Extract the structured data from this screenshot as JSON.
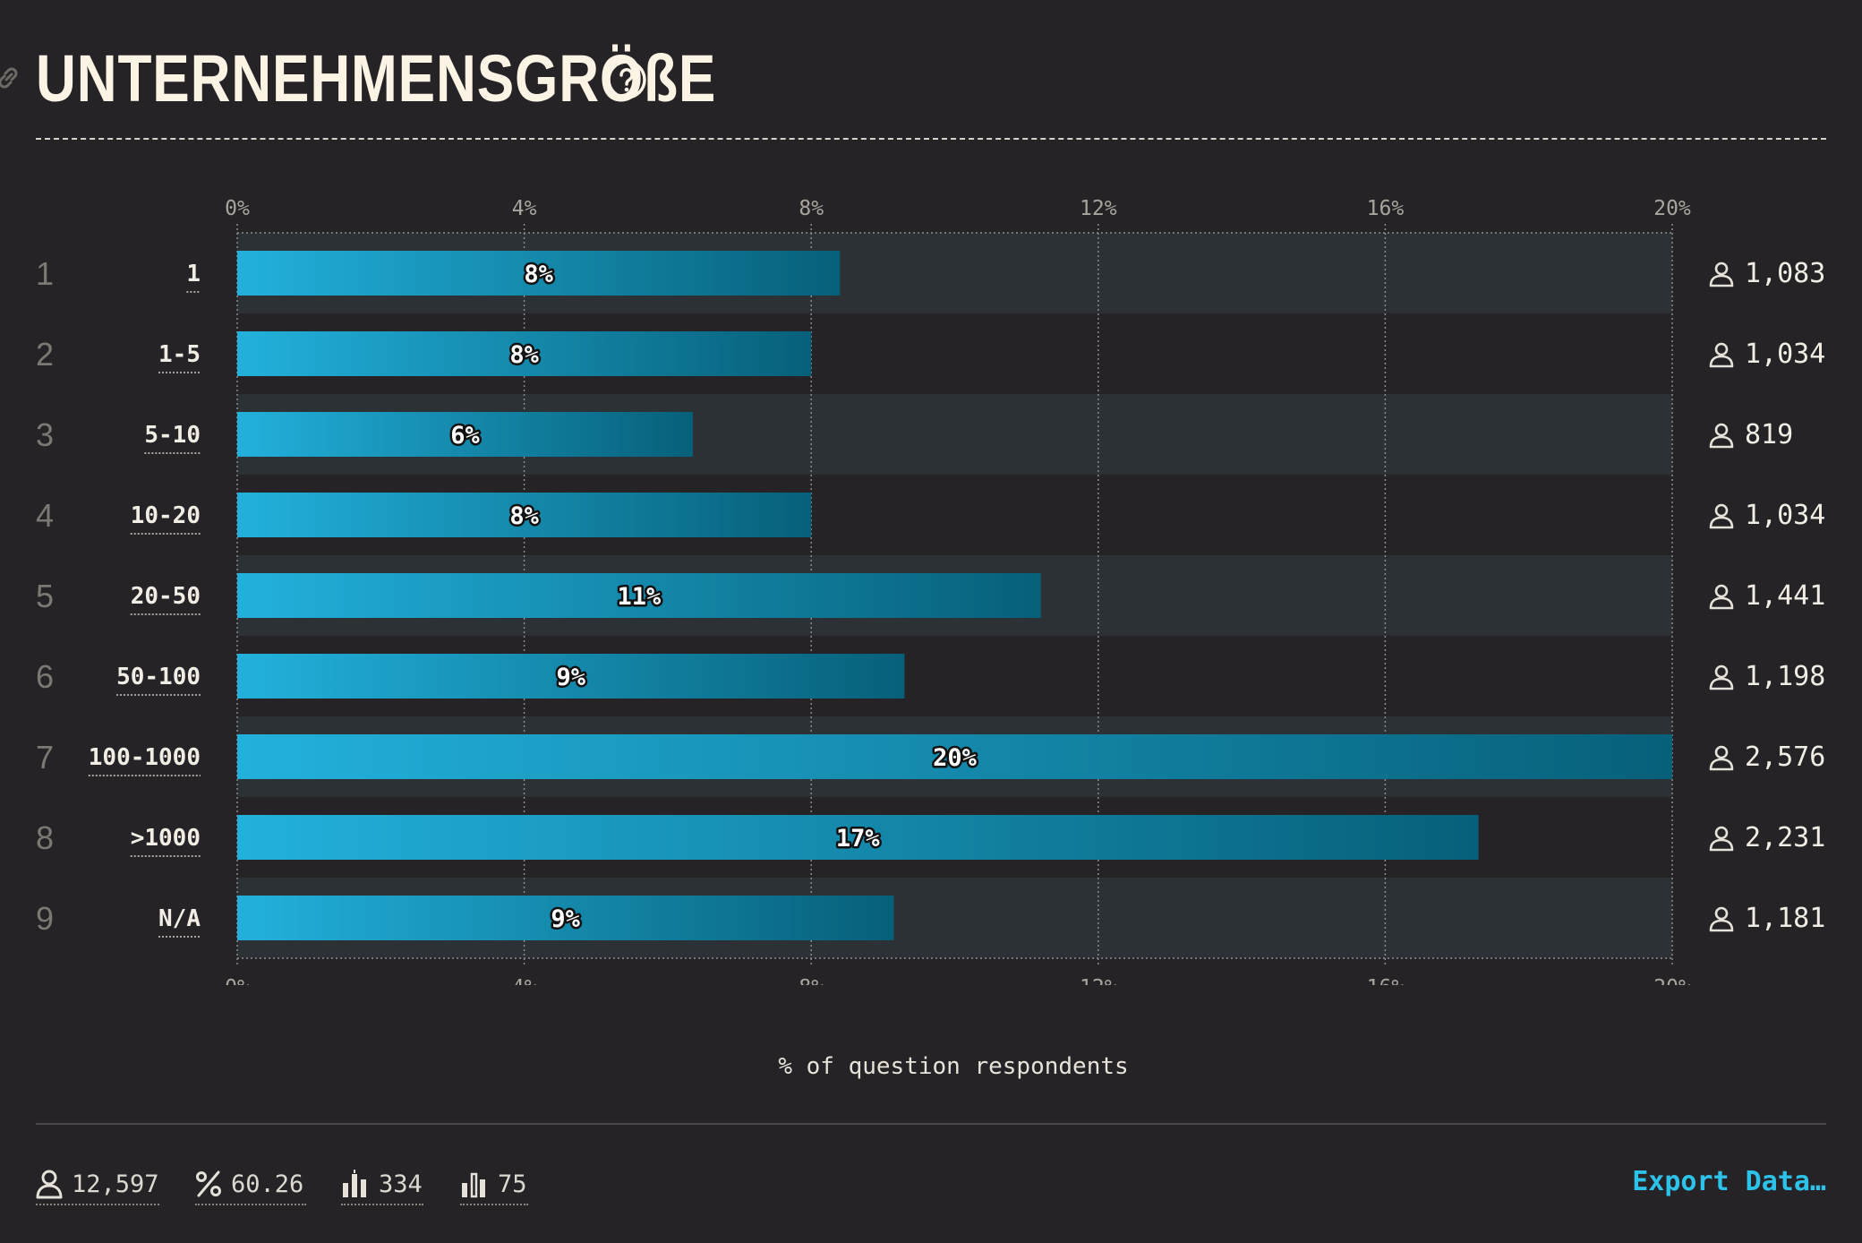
{
  "header": {
    "title": "UNTERNEHMENSGRÖßE"
  },
  "chart_data": {
    "type": "bar",
    "orientation": "horizontal",
    "categories": [
      "1",
      "1-5",
      "5-10",
      "10-20",
      "20-50",
      "50-100",
      "100-1000",
      ">1000",
      "N/A"
    ],
    "row_numbers": [
      "1",
      "2",
      "3",
      "4",
      "5",
      "6",
      "7",
      "8",
      "9"
    ],
    "values": [
      8.4,
      8.0,
      6.35,
      8.0,
      11.2,
      9.3,
      20.0,
      17.3,
      9.15
    ],
    "value_labels": [
      "8%",
      "8%",
      "6%",
      "8%",
      "11%",
      "9%",
      "20%",
      "17%",
      "9%"
    ],
    "counts": [
      "1,083",
      "1,034",
      "819",
      "1,034",
      "1,441",
      "1,198",
      "2,576",
      "2,231",
      "1,181"
    ],
    "xlim": [
      0,
      20
    ],
    "ticks": [
      "0%",
      "4%",
      "8%",
      "12%",
      "16%",
      "20%"
    ],
    "xlabel": "% of question respondents",
    "grid": true,
    "colors": {
      "bar_start": "#22b1dc",
      "bar_end": "#07607a",
      "band": "#2c3135",
      "grid": "#8c8c8c"
    }
  },
  "footer": {
    "respondents": "12,597",
    "percent": "60.26",
    "stat_a": "334",
    "stat_b": "75",
    "export_label": "Export Data…"
  },
  "colors": {
    "background": "#262326",
    "accent": "#2cc2ea",
    "text": "#f1ece4"
  }
}
